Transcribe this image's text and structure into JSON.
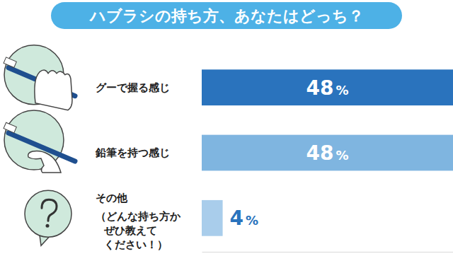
{
  "chart_data": {
    "type": "bar",
    "orientation": "horizontal",
    "title": "ハブラシの持ち方、あなたはどっち？",
    "categories": [
      "グーで握る感じ",
      "鉛筆を持つ感じ",
      "その他\n（どんな持ち方か\nぜひ教えて\nください！）"
    ],
    "values": [
      48,
      48,
      4
    ],
    "value_labels": [
      "48%",
      "48%",
      "4%"
    ],
    "colors": [
      "#2a73bd",
      "#7fb5e0",
      "#a9cdeb"
    ],
    "xlim": [
      0,
      48
    ],
    "xticks": [],
    "tick_labels": "y",
    "data_labels": true,
    "grid": false
  }
}
